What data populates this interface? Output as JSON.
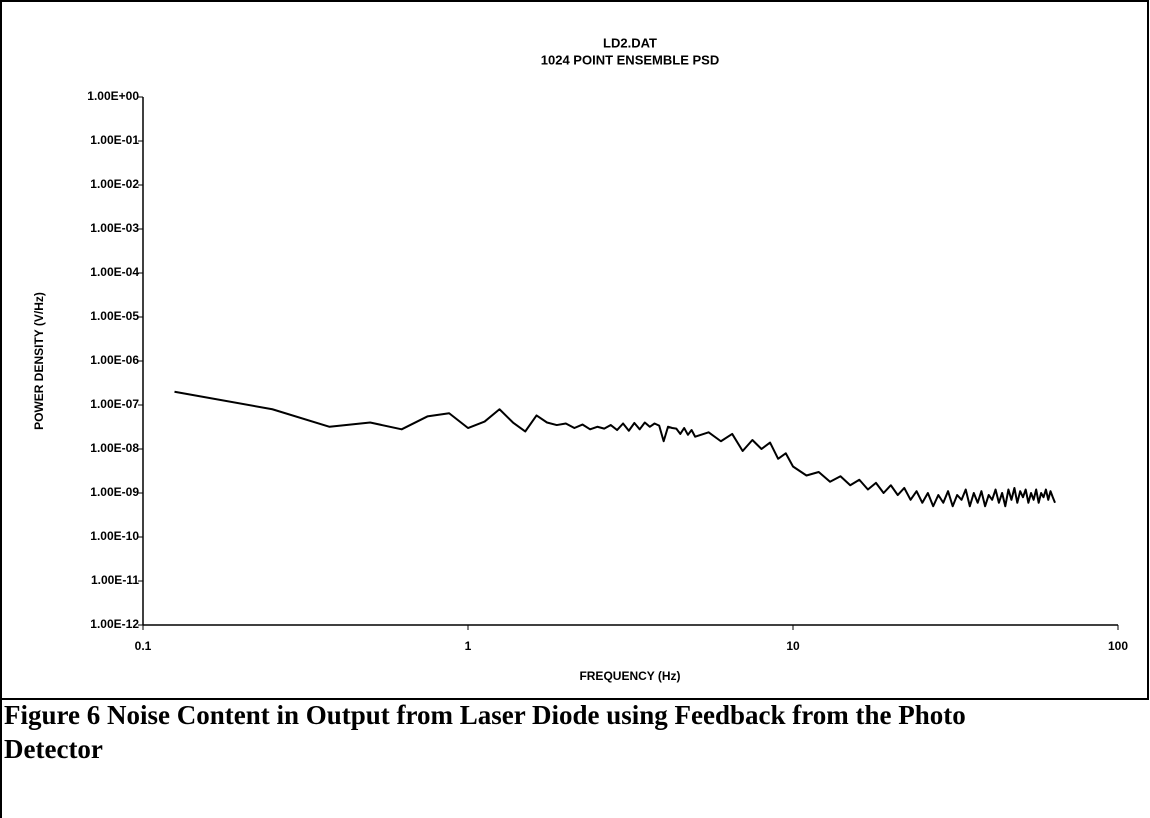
{
  "chart_data": {
    "type": "line",
    "title": "LD2.DAT",
    "subtitle": "1024 POINT ENSEMBLE PSD",
    "xlabel": "FREQUENCY (Hz)",
    "ylabel": "POWER DENSITY (V/Hz)",
    "xscale": "log",
    "yscale": "log",
    "grid": false,
    "color": "#000000",
    "xlim": [
      0.1,
      100
    ],
    "xticks": [
      0.1,
      1,
      10,
      100
    ],
    "ylim": [
      1e-12,
      1
    ],
    "yticks": [
      {
        "value": 1e-12,
        "label": "1.00E-12"
      },
      {
        "value": 1e-11,
        "label": "1.00E-11"
      },
      {
        "value": 1e-10,
        "label": "1.00E-10"
      },
      {
        "value": 1e-09,
        "label": "1.00E-09"
      },
      {
        "value": 1e-08,
        "label": "1.00E-08"
      },
      {
        "value": 1e-07,
        "label": "1.00E-07"
      },
      {
        "value": 1e-06,
        "label": "1.00E-06"
      },
      {
        "value": 1e-05,
        "label": "1.00E-05"
      },
      {
        "value": 0.0001,
        "label": "1.00E-04"
      },
      {
        "value": 0.001,
        "label": "1.00E-03"
      },
      {
        "value": 0.01,
        "label": "1.00E-02"
      },
      {
        "value": 0.1,
        "label": "1.00E-01"
      },
      {
        "value": 1,
        "label": "1.00E+00"
      }
    ],
    "x": [
      0.125,
      0.25,
      0.375,
      0.5,
      0.625,
      0.75,
      0.875,
      1.0,
      1.125,
      1.25,
      1.375,
      1.5,
      1.625,
      1.75,
      1.875,
      2.0,
      2.125,
      2.25,
      2.375,
      2.5,
      2.625,
      2.75,
      2.875,
      3.0,
      3.125,
      3.25,
      3.375,
      3.5,
      3.625,
      3.75,
      3.875,
      4.0,
      4.125,
      4.25,
      4.375,
      4.5,
      4.625,
      4.75,
      4.875,
      5.0,
      5.5,
      6,
      6.5,
      7,
      7.5,
      8,
      8.5,
      9,
      9.5,
      10,
      11,
      12,
      13,
      14,
      15,
      16,
      17,
      18,
      19,
      20,
      21,
      22,
      23,
      24,
      25,
      26,
      27,
      28,
      29,
      30,
      31,
      32,
      33,
      34,
      35,
      36,
      37,
      38,
      39,
      40,
      41,
      42,
      43,
      44,
      45,
      46,
      47,
      48,
      49,
      50,
      51,
      52,
      53,
      54,
      55,
      56,
      57,
      58,
      59,
      60,
      61,
      62,
      63,
      64
    ],
    "values": [
      2e-07,
      8e-08,
      3.2e-08,
      4e-08,
      2.8e-08,
      5.5e-08,
      6.5e-08,
      3e-08,
      4.2e-08,
      8e-08,
      4e-08,
      2.5e-08,
      5.8e-08,
      4e-08,
      3.5e-08,
      3.8e-08,
      3e-08,
      3.6e-08,
      2.8e-08,
      3.2e-08,
      2.9e-08,
      3.5e-08,
      2.7e-08,
      3.8e-08,
      2.6e-08,
      3.9e-08,
      2.8e-08,
      4e-08,
      3.2e-08,
      3.8e-08,
      3.4e-08,
      1.5e-08,
      3.2e-08,
      3e-08,
      2.9e-08,
      2.2e-08,
      3e-08,
      2.1e-08,
      2.7e-08,
      1.9e-08,
      2.4e-08,
      1.5e-08,
      2.2e-08,
      9e-09,
      1.6e-08,
      1e-08,
      1.4e-08,
      6e-09,
      8e-09,
      4e-09,
      2.5e-09,
      3e-09,
      1.8e-09,
      2.4e-09,
      1.5e-09,
      2e-09,
      1.2e-09,
      1.7e-09,
      1e-09,
      1.5e-09,
      9e-10,
      1.3e-09,
      7e-10,
      1.1e-09,
      6e-10,
      1e-09,
      5e-10,
      9e-10,
      6e-10,
      1.1e-09,
      5e-10,
      9e-10,
      7e-10,
      1.2e-09,
      5e-10,
      1e-09,
      6e-10,
      1.1e-09,
      5e-10,
      9e-10,
      7e-10,
      1.2e-09,
      6e-10,
      1e-09,
      5e-10,
      1.2e-09,
      7e-10,
      1.3e-09,
      6e-10,
      1.1e-09,
      8e-10,
      1.2e-09,
      6e-10,
      1e-09,
      7e-10,
      1.2e-09,
      6e-10,
      1e-09,
      8e-10,
      1.2e-09,
      7e-10,
      1.1e-09,
      8e-10,
      6e-10
    ]
  },
  "caption": [
    "Figure 6  Noise Content in Output from Laser Diode using Feedback from the Photo",
    "Detector"
  ]
}
